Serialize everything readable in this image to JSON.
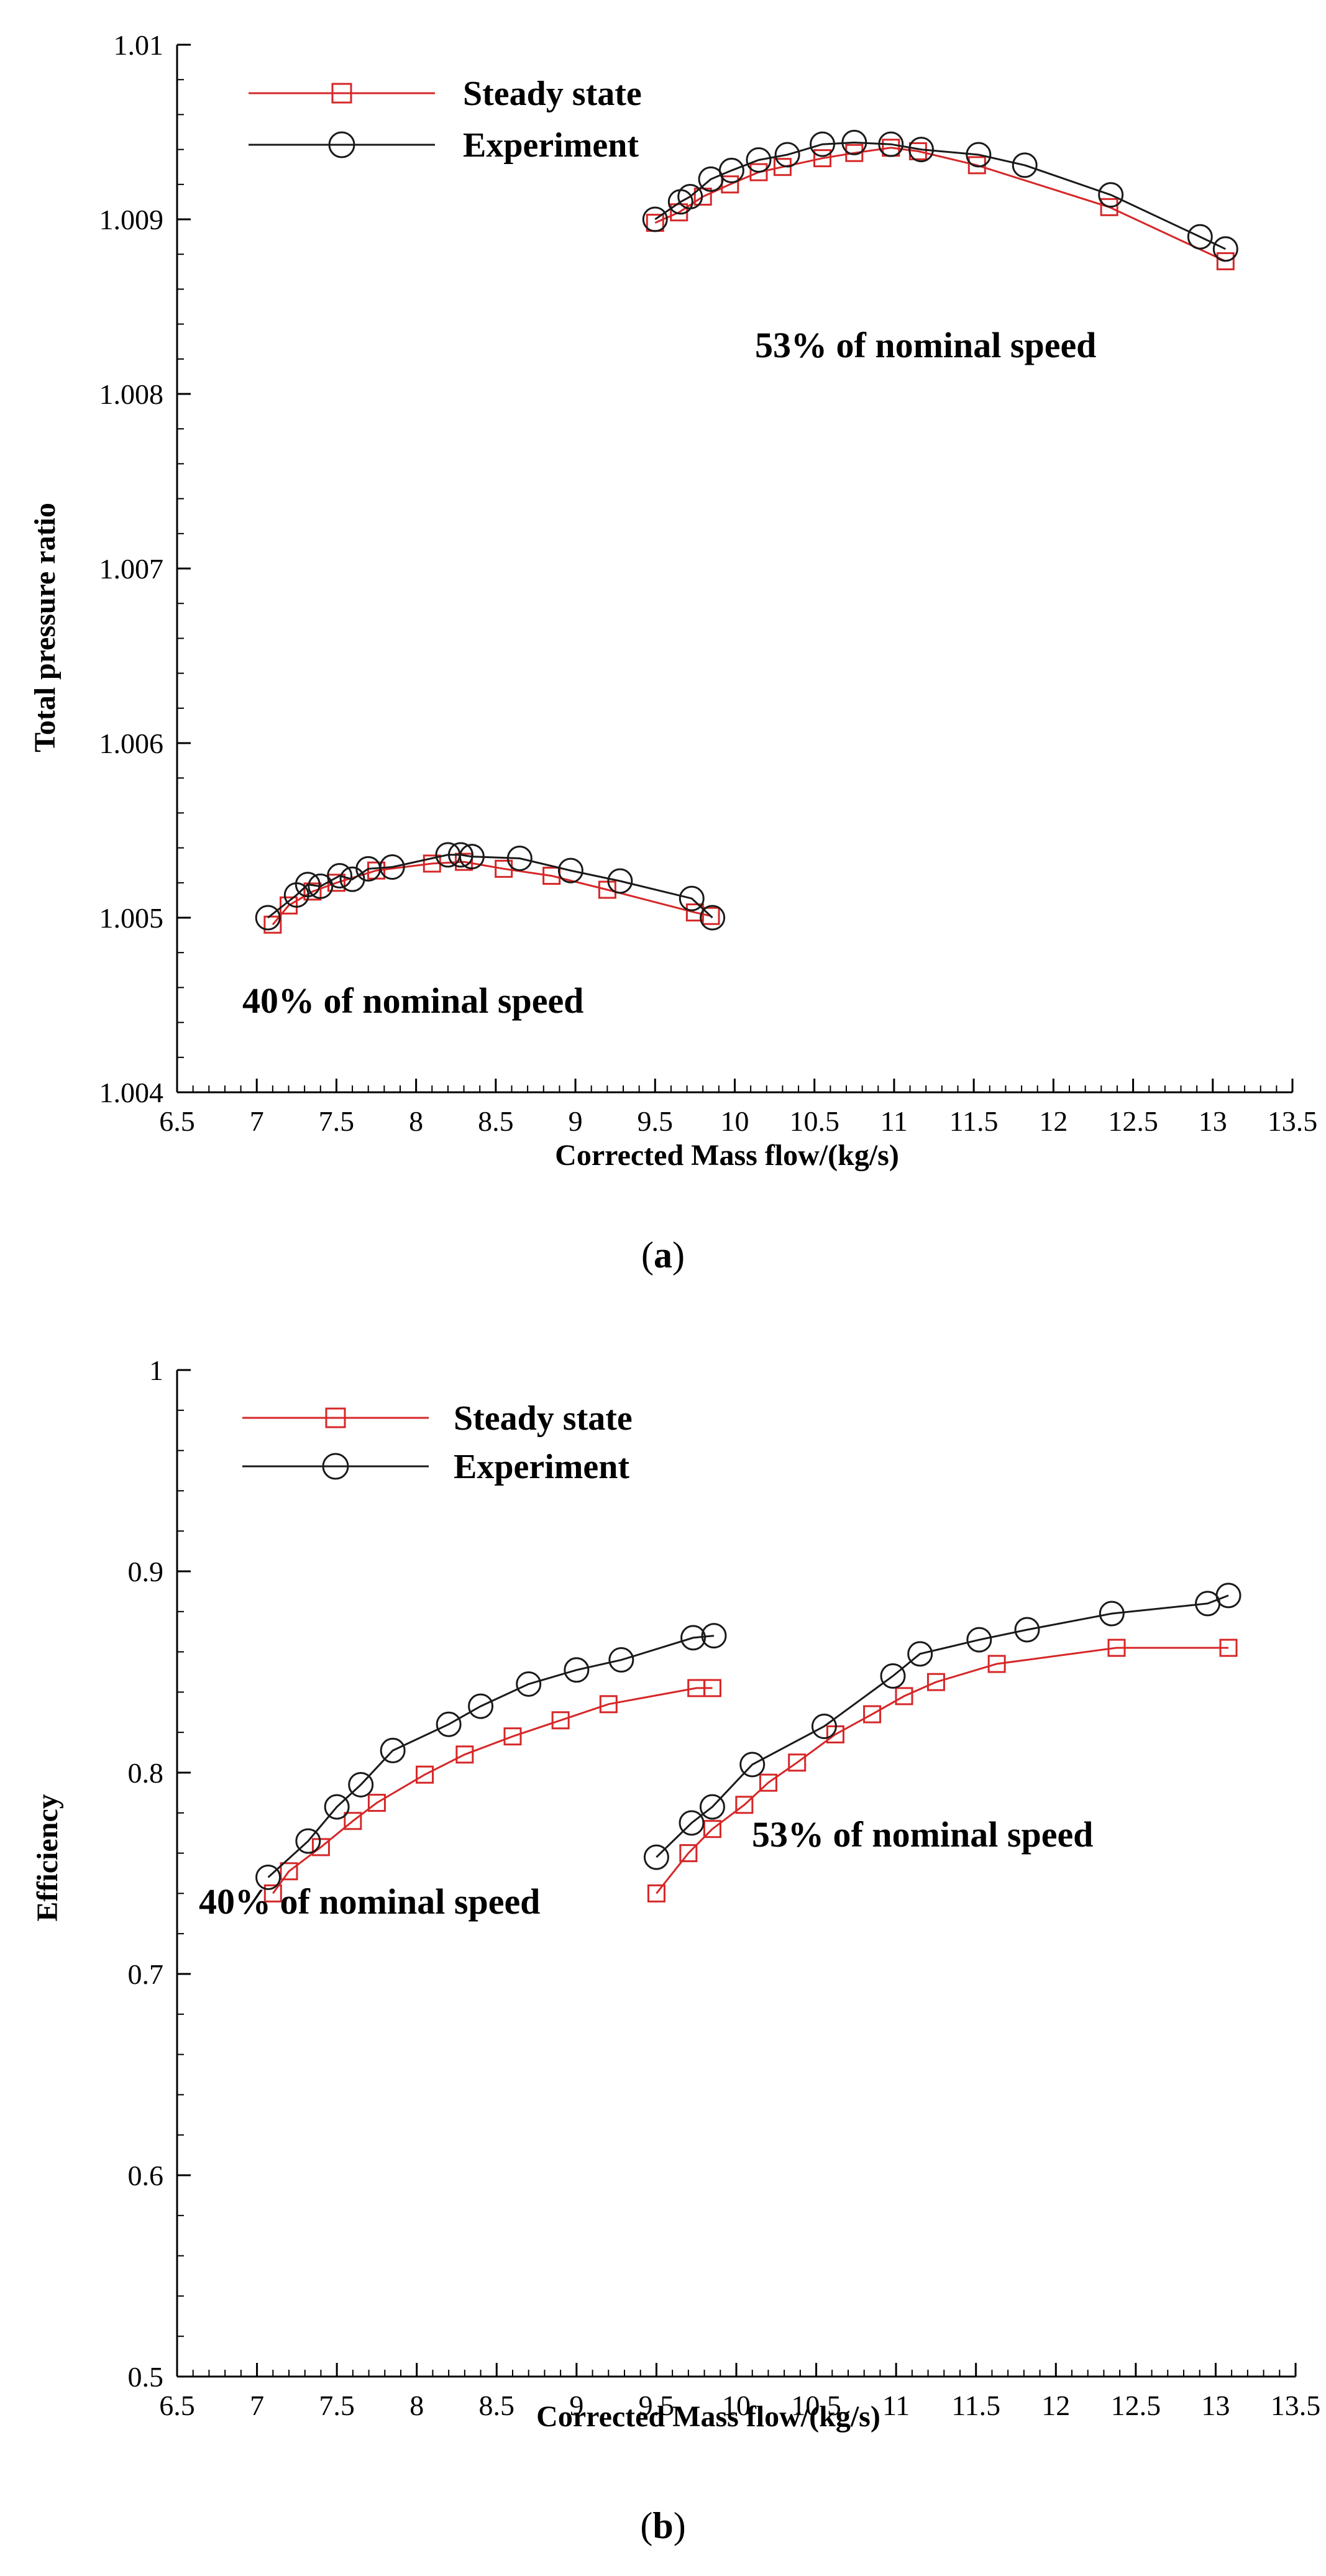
{
  "colors": {
    "steady": "#d62728",
    "experiment": "#1a1a1a",
    "axis": "#000000"
  },
  "chart_data": [
    {
      "type": "line",
      "panel_label": "(a)",
      "panel_label_bold": "a",
      "title": "",
      "xlabel": "Corrected Mass flow/(kg/s)",
      "ylabel": "Total pressure ratio",
      "xlim": [
        6.5,
        13.5
      ],
      "ylim": [
        1.004,
        1.01
      ],
      "xticks": [
        6.5,
        7,
        7.5,
        8,
        8.5,
        9,
        9.5,
        10,
        10.5,
        11,
        11.5,
        12,
        12.5,
        13,
        13.5
      ],
      "xtick_labels": [
        "6.5",
        "7",
        "7.5",
        "8",
        "8.5",
        "9",
        "9.5",
        "10",
        "10.5",
        "11",
        "11.5",
        "12",
        "12.5",
        "13",
        "13.5"
      ],
      "yticks": [
        1.004,
        1.005,
        1.006,
        1.007,
        1.008,
        1.009,
        1.01
      ],
      "ytick_labels": [
        "1.004",
        "1.005",
        "1.006",
        "1.007",
        "1.008",
        "1.009",
        "1.01"
      ],
      "legend": [
        "Steady state",
        "Experiment"
      ],
      "annotations": [
        "53% of nominal speed",
        "40% of nominal speed"
      ],
      "series": [
        {
          "name": "Steady state",
          "group": "40%",
          "marker": "square",
          "x": [
            7.1,
            7.2,
            7.35,
            7.5,
            7.75,
            8.1,
            8.3,
            8.55,
            8.85,
            9.2,
            9.75,
            9.85
          ],
          "y": [
            1.00496,
            1.00507,
            1.00515,
            1.0052,
            1.00527,
            1.00531,
            1.00532,
            1.00528,
            1.00524,
            1.00516,
            1.00503,
            1.00501
          ]
        },
        {
          "name": "Experiment",
          "group": "40%",
          "marker": "circle",
          "x": [
            7.07,
            7.25,
            7.32,
            7.4,
            7.52,
            7.6,
            7.7,
            7.85,
            8.2,
            8.28,
            8.35,
            8.65,
            8.97,
            9.28,
            9.73,
            9.86
          ],
          "y": [
            1.005,
            1.00513,
            1.00519,
            1.00518,
            1.00524,
            1.00522,
            1.00528,
            1.00529,
            1.00536,
            1.00536,
            1.00535,
            1.00534,
            1.00527,
            1.00521,
            1.00511,
            1.005
          ]
        },
        {
          "name": "Steady state",
          "group": "53%",
          "marker": "square",
          "x": [
            9.5,
            9.65,
            9.8,
            9.97,
            10.15,
            10.3,
            10.55,
            10.75,
            10.98,
            11.15,
            11.52,
            12.35,
            13.08
          ],
          "y": [
            1.00898,
            1.00904,
            1.00913,
            1.0092,
            1.00927,
            1.0093,
            1.00935,
            1.00938,
            1.00941,
            1.00939,
            1.00931,
            1.00907,
            1.00876
          ]
        },
        {
          "name": "Experiment",
          "group": "53%",
          "marker": "circle",
          "x": [
            9.5,
            9.66,
            9.72,
            9.85,
            9.98,
            10.15,
            10.33,
            10.55,
            10.75,
            10.98,
            11.17,
            11.53,
            11.82,
            12.36,
            12.92,
            13.08
          ],
          "y": [
            1.009,
            1.0091,
            1.00913,
            1.00923,
            1.00928,
            1.00934,
            1.00937,
            1.00943,
            1.00944,
            1.00943,
            1.0094,
            1.00937,
            1.00931,
            1.00914,
            1.0089,
            1.00883
          ]
        }
      ]
    },
    {
      "type": "line",
      "panel_label": "(b)",
      "panel_label_bold": "b",
      "title": "",
      "xlabel": "Corrected Mass flow/(kg/s)",
      "ylabel": "Efficiency",
      "xlim": [
        6.5,
        13.5
      ],
      "ylim": [
        0.5,
        1.0
      ],
      "xticks": [
        6.5,
        7,
        7.5,
        8,
        8.5,
        9,
        9.5,
        10,
        10.5,
        11,
        11.5,
        12,
        12.5,
        13,
        13.5
      ],
      "xtick_labels": [
        "6.5",
        "7",
        "7.5",
        "8",
        "8.5",
        "9",
        "9.5",
        "10",
        "10.5",
        "11",
        "11.5",
        "12",
        "12.5",
        "13",
        "13.5"
      ],
      "yticks": [
        0.5,
        0.6,
        0.7,
        0.8,
        0.9,
        1.0
      ],
      "ytick_labels": [
        "0.5",
        "0.6",
        "0.7",
        "0.8",
        "0.9",
        "1"
      ],
      "legend": [
        "Steady state",
        "Experiment"
      ],
      "annotations": [
        "53% of nominal speed",
        "40% of nominal speed"
      ],
      "series": [
        {
          "name": "Steady state",
          "group": "40%",
          "marker": "square",
          "x": [
            7.1,
            7.2,
            7.4,
            7.6,
            7.75,
            8.05,
            8.3,
            8.6,
            8.9,
            9.2,
            9.75,
            9.85
          ],
          "y": [
            0.74,
            0.751,
            0.763,
            0.776,
            0.785,
            0.799,
            0.809,
            0.818,
            0.826,
            0.834,
            0.842,
            0.842
          ]
        },
        {
          "name": "Experiment",
          "group": "40%",
          "marker": "circle",
          "x": [
            7.07,
            7.32,
            7.5,
            7.65,
            7.85,
            8.2,
            8.4,
            8.7,
            9.0,
            9.28,
            9.73,
            9.86
          ],
          "y": [
            0.748,
            0.766,
            0.783,
            0.794,
            0.811,
            0.824,
            0.833,
            0.844,
            0.851,
            0.856,
            0.867,
            0.868
          ]
        },
        {
          "name": "Steady state",
          "group": "53%",
          "marker": "square",
          "x": [
            9.5,
            9.7,
            9.85,
            10.05,
            10.2,
            10.38,
            10.62,
            10.85,
            11.05,
            11.25,
            11.63,
            12.38,
            13.08
          ],
          "y": [
            0.74,
            0.76,
            0.772,
            0.784,
            0.795,
            0.805,
            0.819,
            0.829,
            0.838,
            0.845,
            0.854,
            0.862,
            0.862
          ]
        },
        {
          "name": "Experiment",
          "group": "53%",
          "marker": "circle",
          "x": [
            9.5,
            9.72,
            9.85,
            10.1,
            10.55,
            10.98,
            11.15,
            11.52,
            11.82,
            12.35,
            12.95,
            13.08
          ],
          "y": [
            0.758,
            0.775,
            0.783,
            0.804,
            0.823,
            0.848,
            0.859,
            0.866,
            0.871,
            0.879,
            0.884,
            0.888
          ]
        }
      ]
    }
  ]
}
